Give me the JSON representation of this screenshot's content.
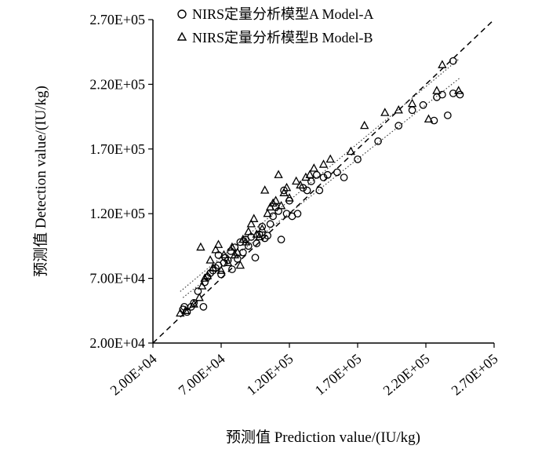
{
  "chart_data": {
    "type": "scatter",
    "xlabel": "预测值 Prediction value/(IU/kg)",
    "ylabel": "预测值 Detection value/(IU/kg)",
    "xlim": [
      20000,
      270000
    ],
    "ylim": [
      20000,
      270000
    ],
    "x_ticks": [
      "2.00E+04",
      "7.00E+04",
      "1.20E+05",
      "1.70E+05",
      "2.20E+05",
      "2.70E+05"
    ],
    "y_ticks": [
      "2.00E+04",
      "7.00E+04",
      "1.20E+05",
      "1.70E+05",
      "2.20E+05",
      "2.70E+05"
    ],
    "legend_position": "top",
    "grid": false,
    "reference_line": "y = x (dashed)",
    "series": [
      {
        "name": "NIRS定量分析模型A Model-A",
        "marker": "circle",
        "color": "#000000",
        "points": [
          [
            42000,
            46000
          ],
          [
            43000,
            48000
          ],
          [
            45000,
            44000
          ],
          [
            48000,
            48000
          ],
          [
            50000,
            51000
          ],
          [
            53000,
            60000
          ],
          [
            57000,
            48000
          ],
          [
            58000,
            67000
          ],
          [
            60000,
            71000
          ],
          [
            62000,
            74000
          ],
          [
            64000,
            76000
          ],
          [
            66000,
            78000
          ],
          [
            68000,
            80000
          ],
          [
            68000,
            88000
          ],
          [
            70000,
            73000
          ],
          [
            72000,
            82000
          ],
          [
            73000,
            86000
          ],
          [
            75000,
            84000
          ],
          [
            77000,
            91000
          ],
          [
            78000,
            77000
          ],
          [
            80000,
            94000
          ],
          [
            82000,
            85000
          ],
          [
            84000,
            98000
          ],
          [
            86000,
            90000
          ],
          [
            88000,
            100000
          ],
          [
            90000,
            95000
          ],
          [
            92000,
            102000
          ],
          [
            95000,
            86000
          ],
          [
            96000,
            97000
          ],
          [
            98000,
            104000
          ],
          [
            100000,
            110000
          ],
          [
            102000,
            101000
          ],
          [
            104000,
            103000
          ],
          [
            106000,
            112000
          ],
          [
            108000,
            118000
          ],
          [
            110000,
            125000
          ],
          [
            112000,
            122000
          ],
          [
            114000,
            100000
          ],
          [
            116000,
            138000
          ],
          [
            118000,
            120000
          ],
          [
            120000,
            130000
          ],
          [
            122000,
            118000
          ],
          [
            126000,
            120000
          ],
          [
            130000,
            140000
          ],
          [
            133000,
            138000
          ],
          [
            136000,
            145000
          ],
          [
            140000,
            150000
          ],
          [
            142000,
            138000
          ],
          [
            145000,
            148000
          ],
          [
            148000,
            150000
          ],
          [
            155000,
            152000
          ],
          [
            160000,
            148000
          ],
          [
            170000,
            162000
          ],
          [
            185000,
            176000
          ],
          [
            200000,
            188000
          ],
          [
            210000,
            200000
          ],
          [
            218000,
            204000
          ],
          [
            228000,
            210000
          ],
          [
            232000,
            212000
          ],
          [
            240000,
            213000
          ],
          [
            240000,
            238000
          ],
          [
            236000,
            196000
          ],
          [
            226000,
            192000
          ],
          [
            245000,
            212000
          ]
        ]
      },
      {
        "name": "NIRS定量分析模型B Model-B",
        "marker": "triangle",
        "color": "#000000",
        "points": [
          [
            40000,
            43000
          ],
          [
            44000,
            45000
          ],
          [
            50000,
            50000
          ],
          [
            54000,
            55000
          ],
          [
            55000,
            94000
          ],
          [
            56000,
            64000
          ],
          [
            58000,
            70000
          ],
          [
            60000,
            72000
          ],
          [
            62000,
            84000
          ],
          [
            64000,
            78000
          ],
          [
            66000,
            92000
          ],
          [
            68000,
            96000
          ],
          [
            70000,
            76000
          ],
          [
            72000,
            88000
          ],
          [
            75000,
            82000
          ],
          [
            78000,
            94000
          ],
          [
            80000,
            88000
          ],
          [
            82000,
            90000
          ],
          [
            84000,
            80000
          ],
          [
            86000,
            100000
          ],
          [
            88000,
            98000
          ],
          [
            90000,
            106000
          ],
          [
            92000,
            112000
          ],
          [
            94000,
            116000
          ],
          [
            96000,
            104000
          ],
          [
            98000,
            102000
          ],
          [
            100000,
            108000
          ],
          [
            102000,
            138000
          ],
          [
            104000,
            120000
          ],
          [
            106000,
            125000
          ],
          [
            108000,
            128000
          ],
          [
            110000,
            130000
          ],
          [
            112000,
            150000
          ],
          [
            114000,
            126000
          ],
          [
            116000,
            136000
          ],
          [
            118000,
            140000
          ],
          [
            120000,
            132000
          ],
          [
            125000,
            145000
          ],
          [
            128000,
            142000
          ],
          [
            132000,
            148000
          ],
          [
            135000,
            150000
          ],
          [
            138000,
            155000
          ],
          [
            145000,
            158000
          ],
          [
            150000,
            162000
          ],
          [
            165000,
            168000
          ],
          [
            175000,
            188000
          ],
          [
            190000,
            198000
          ],
          [
            200000,
            200000
          ],
          [
            210000,
            205000
          ],
          [
            222000,
            193000
          ],
          [
            228000,
            215000
          ],
          [
            232000,
            235000
          ],
          [
            244000,
            215000
          ]
        ]
      }
    ]
  }
}
